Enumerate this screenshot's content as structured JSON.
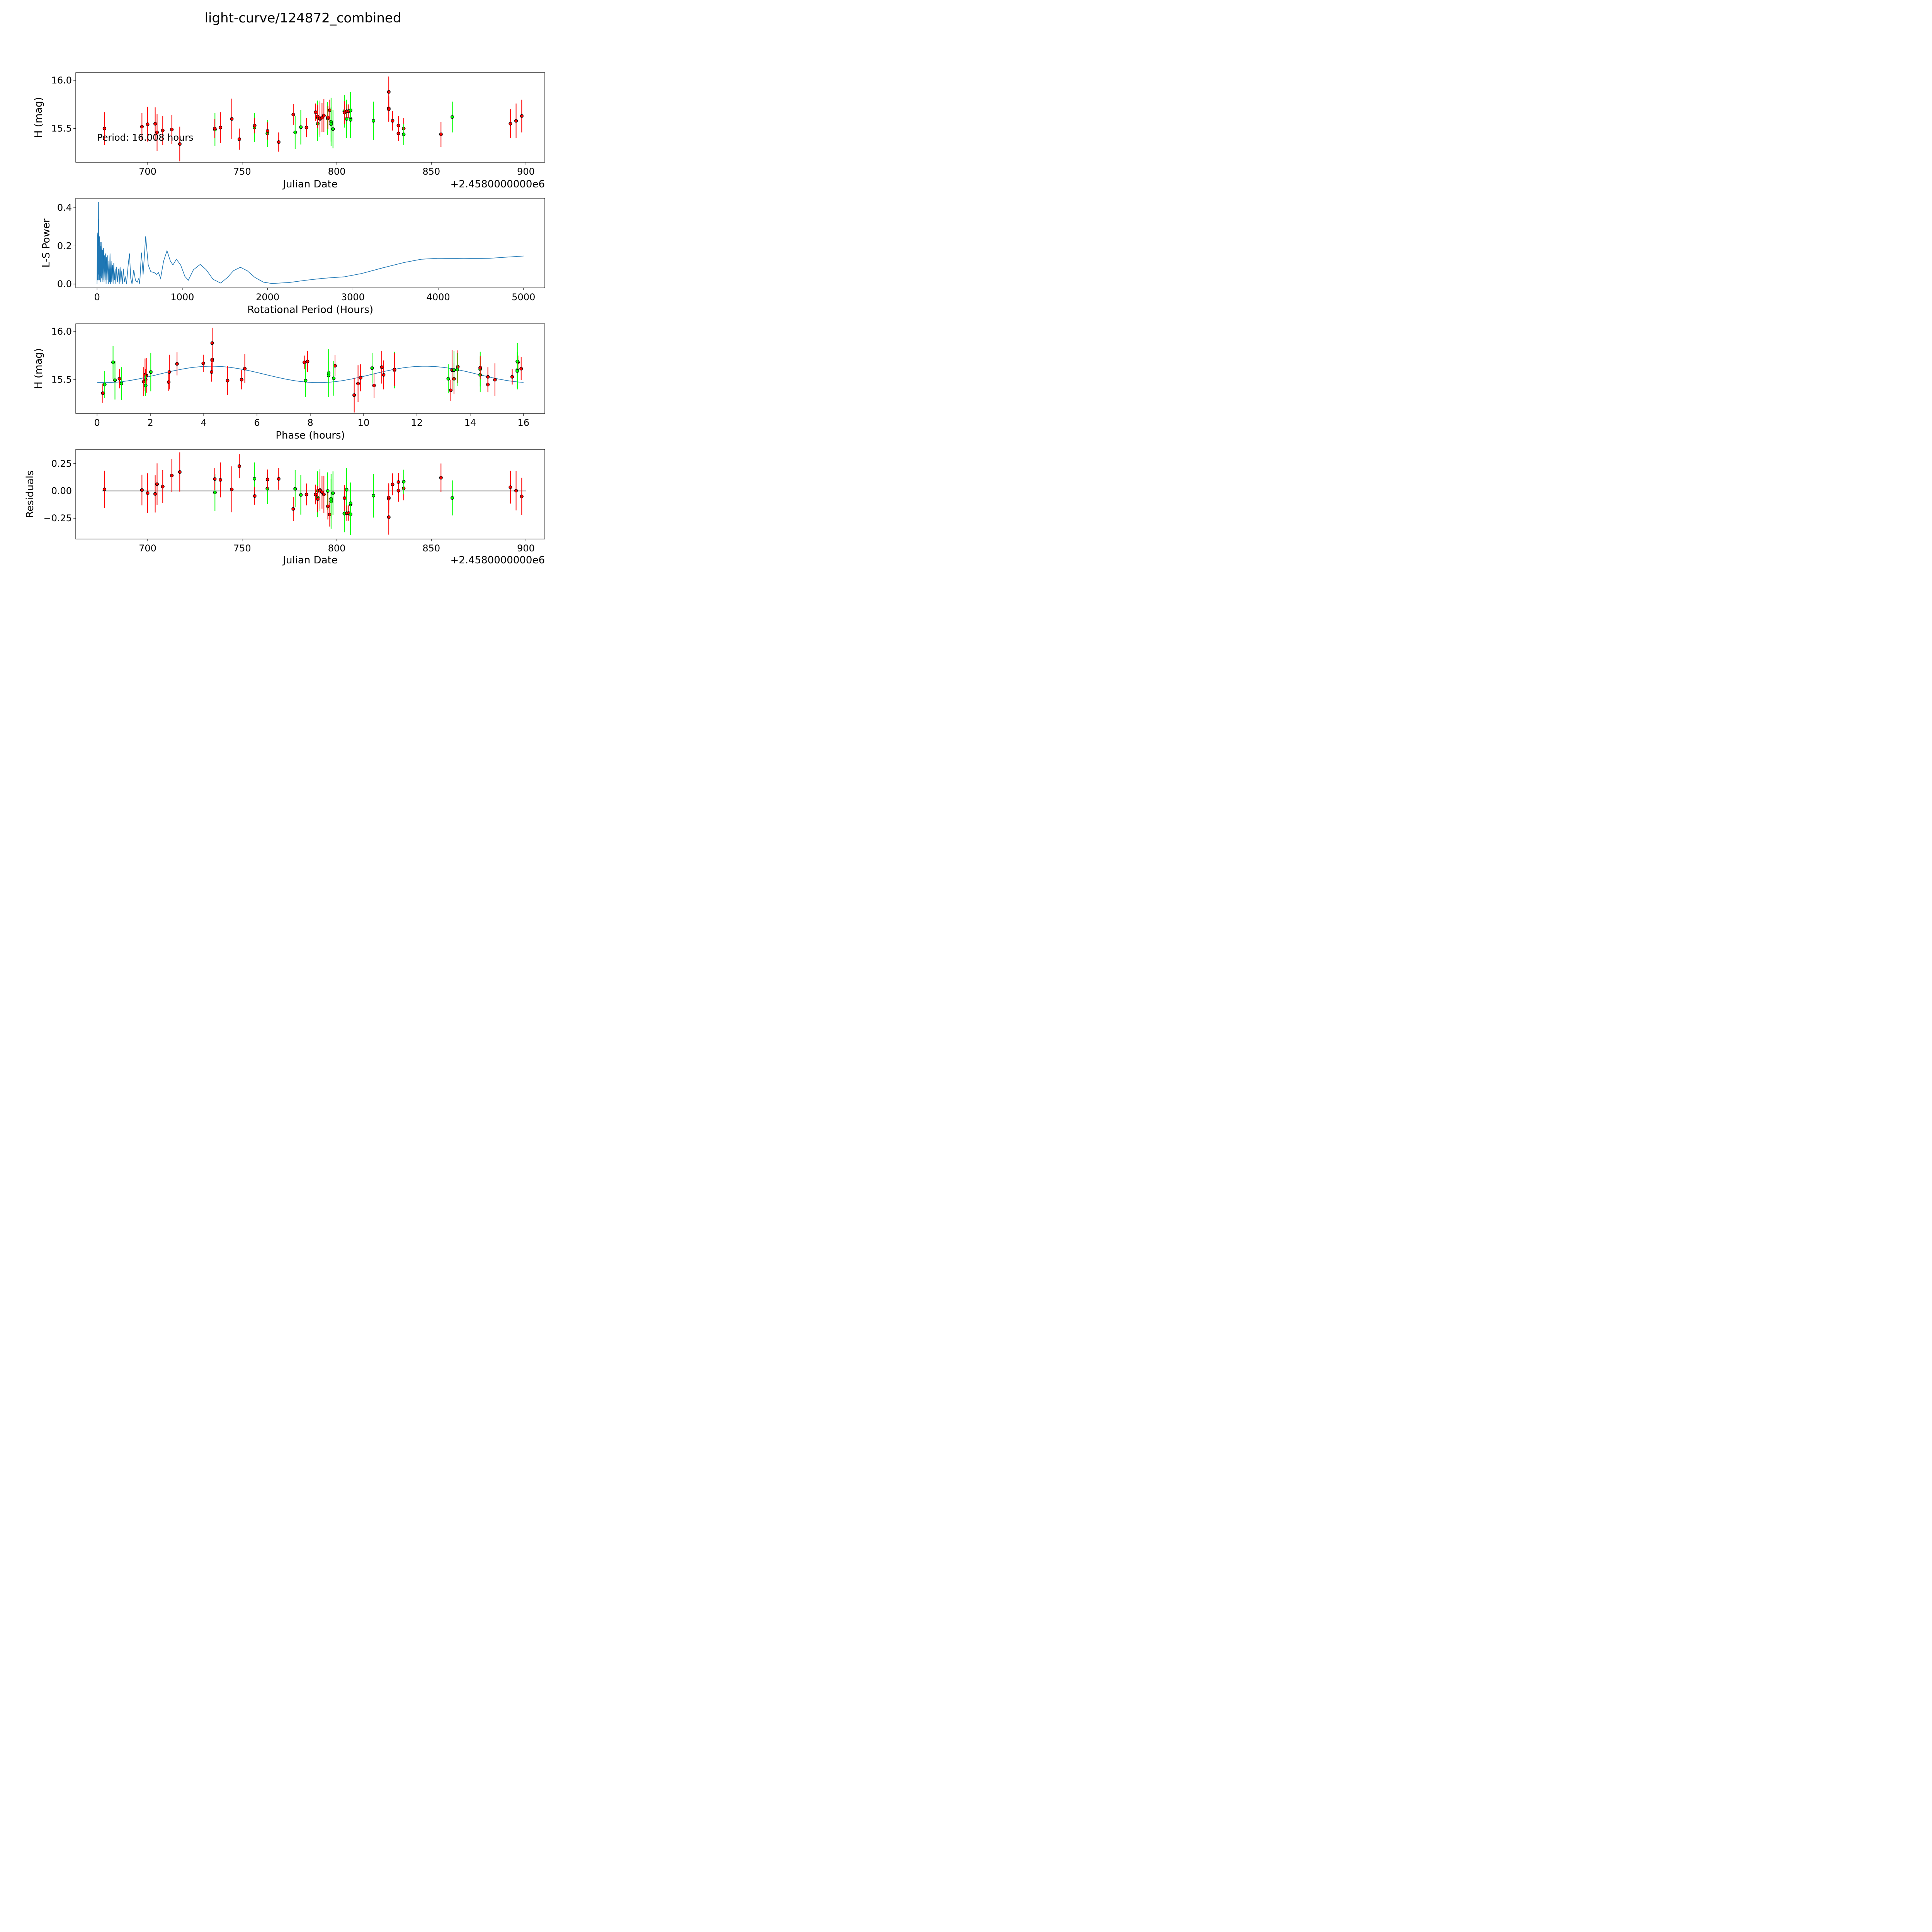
{
  "title": "light-curve/124872_combined",
  "colors": {
    "red": "#ff0000",
    "green": "#00ff00",
    "model": "#1f77b4",
    "marker_edge": "#000000"
  },
  "chart_data": [
    {
      "type": "scatter",
      "id": "lightcurve",
      "xlabel": "Julian Date",
      "ylabel": "H (mag)",
      "offset_label": "+2.4580000000e6",
      "annotation": "Period: 16.008 hours",
      "xlim": [
        662,
        910
      ],
      "ylim": [
        15.15,
        16.08
      ],
      "xticks": [
        700,
        750,
        800,
        850,
        900
      ],
      "yticks": [
        15.5,
        16.0
      ],
      "ytick_labels": [
        "15.5",
        "16.0"
      ],
      "xtick_labels": [
        "700",
        "750",
        "800",
        "850",
        "900"
      ]
    },
    {
      "type": "line",
      "id": "periodogram",
      "xlabel": "Rotational Period (Hours)",
      "ylabel": "L-S Power",
      "xlim": [
        -250,
        5250
      ],
      "ylim": [
        -0.02,
        0.45
      ],
      "xticks": [
        0,
        1000,
        2000,
        3000,
        4000,
        5000
      ],
      "xtick_labels": [
        "0",
        "1000",
        "2000",
        "3000",
        "4000",
        "5000"
      ],
      "yticks": [
        0.0,
        0.2,
        0.4
      ],
      "ytick_labels": [
        "0.0",
        "0.2",
        "0.4"
      ],
      "points": [
        [
          0,
          0
        ],
        [
          4,
          0.26
        ],
        [
          6,
          0.02
        ],
        [
          8,
          0.27
        ],
        [
          10,
          0.05
        ],
        [
          13,
          0.34
        ],
        [
          15,
          0.02
        ],
        [
          18,
          0.43
        ],
        [
          20,
          0.05
        ],
        [
          24,
          0.2
        ],
        [
          27,
          0.02
        ],
        [
          30,
          0.25
        ],
        [
          34,
          0.04
        ],
        [
          38,
          0.22
        ],
        [
          42,
          0.01
        ],
        [
          46,
          0.2
        ],
        [
          50,
          0.03
        ],
        [
          55,
          0.22
        ],
        [
          60,
          0.01
        ],
        [
          65,
          0.18
        ],
        [
          70,
          0.02
        ],
        [
          76,
          0.19
        ],
        [
          82,
          0.01
        ],
        [
          88,
          0.15
        ],
        [
          94,
          0.02
        ],
        [
          100,
          0.16
        ],
        [
          106,
          0.0
        ],
        [
          112,
          0.14
        ],
        [
          118,
          0.02
        ],
        [
          125,
          0.15
        ],
        [
          132,
          0.0
        ],
        [
          138,
          0.12
        ],
        [
          145,
          0.01
        ],
        [
          152,
          0.16
        ],
        [
          158,
          0.0
        ],
        [
          165,
          0.12
        ],
        [
          172,
          0.01
        ],
        [
          180,
          0.1
        ],
        [
          188,
          0.0
        ],
        [
          196,
          0.11
        ],
        [
          204,
          0.02
        ],
        [
          212,
          0.08
        ],
        [
          220,
          0.0
        ],
        [
          230,
          0.09
        ],
        [
          240,
          0.01
        ],
        [
          250,
          0.08
        ],
        [
          260,
          0.0
        ],
        [
          270,
          0.09
        ],
        [
          280,
          0.01
        ],
        [
          290,
          0.07
        ],
        [
          300,
          0.0
        ],
        [
          310,
          0.08
        ],
        [
          320,
          0.01
        ],
        [
          330,
          0.04
        ],
        [
          345,
          0.0
        ],
        [
          365,
          0.1
        ],
        [
          380,
          0.16
        ],
        [
          395,
          0.03
        ],
        [
          410,
          0.0
        ],
        [
          430,
          0.075
        ],
        [
          450,
          0.02
        ],
        [
          470,
          0.01
        ],
        [
          490,
          0.03
        ],
        [
          500,
          0.0
        ],
        [
          520,
          0.165
        ],
        [
          540,
          0.05
        ],
        [
          570,
          0.25
        ],
        [
          600,
          0.1
        ],
        [
          630,
          0.065
        ],
        [
          670,
          0.06
        ],
        [
          700,
          0.05
        ],
        [
          720,
          0.06
        ],
        [
          745,
          0.03
        ],
        [
          780,
          0.12
        ],
        [
          820,
          0.175
        ],
        [
          860,
          0.12
        ],
        [
          890,
          0.1
        ],
        [
          930,
          0.13
        ],
        [
          980,
          0.1
        ],
        [
          1030,
          0.04
        ],
        [
          1070,
          0.02
        ],
        [
          1130,
          0.075
        ],
        [
          1210,
          0.103
        ],
        [
          1280,
          0.075
        ],
        [
          1360,
          0.025
        ],
        [
          1450,
          0.005
        ],
        [
          1530,
          0.035
        ],
        [
          1600,
          0.07
        ],
        [
          1680,
          0.088
        ],
        [
          1760,
          0.07
        ],
        [
          1850,
          0.035
        ],
        [
          1950,
          0.01
        ],
        [
          2050,
          0.003
        ],
        [
          2250,
          0.008
        ],
        [
          2450,
          0.02
        ],
        [
          2650,
          0.03
        ],
        [
          2900,
          0.038
        ],
        [
          3100,
          0.055
        ],
        [
          3350,
          0.085
        ],
        [
          3600,
          0.113
        ],
        [
          3800,
          0.13
        ],
        [
          4000,
          0.135
        ],
        [
          4300,
          0.133
        ],
        [
          4600,
          0.135
        ],
        [
          5000,
          0.147
        ]
      ]
    },
    {
      "type": "scatter",
      "id": "phased",
      "xlabel": "Phase (hours)",
      "ylabel": "H (mag)",
      "xlim": [
        -0.8,
        16.8
      ],
      "ylim": [
        15.15,
        16.08
      ],
      "xticks": [
        0,
        2,
        4,
        6,
        8,
        10,
        12,
        14,
        16
      ],
      "xtick_labels": [
        "0",
        "2",
        "4",
        "6",
        "8",
        "10",
        "12",
        "14",
        "16"
      ],
      "yticks": [
        15.5,
        16.0
      ],
      "ytick_labels": [
        "15.5",
        "16.0"
      ],
      "period_hours": 16.008,
      "epoch_jd": 827.32,
      "model": {
        "mean": 15.555,
        "amplitude": 0.085,
        "harmonic_period_hours": 8.004,
        "peak_phase": 4.3
      }
    },
    {
      "type": "scatter",
      "id": "residuals",
      "xlabel": "Julian Date",
      "ylabel": "Residuals",
      "offset_label": "+2.4580000000e6",
      "xlim": [
        662,
        910
      ],
      "ylim": [
        -0.44,
        0.38
      ],
      "xticks": [
        700,
        750,
        800,
        850,
        900
      ],
      "xtick_labels": [
        "700",
        "750",
        "800",
        "850",
        "900"
      ],
      "yticks": [
        -0.25,
        0.0,
        0.25
      ],
      "ytick_labels": [
        "−0.25",
        "0.00",
        "0.25"
      ]
    }
  ],
  "observations": [
    {
      "jd": 677.2,
      "mag": 15.5,
      "err": 0.17,
      "f": "red"
    },
    {
      "jd": 697.0,
      "mag": 15.52,
      "err": 0.14,
      "f": "red"
    },
    {
      "jd": 700.0,
      "mag": 15.545,
      "err": 0.18,
      "f": "red"
    },
    {
      "jd": 704.0,
      "mag": 15.55,
      "err": 0.17,
      "f": "red"
    },
    {
      "jd": 705.0,
      "mag": 15.46,
      "err": 0.19,
      "f": "red"
    },
    {
      "jd": 708.0,
      "mag": 15.48,
      "err": 0.15,
      "f": "red"
    },
    {
      "jd": 712.8,
      "mag": 15.49,
      "err": 0.15,
      "f": "red"
    },
    {
      "jd": 717.0,
      "mag": 15.34,
      "err": 0.18,
      "f": "red"
    },
    {
      "jd": 735.6,
      "mag": 15.49,
      "err": 0.17,
      "f": "green"
    },
    {
      "jd": 735.5,
      "mag": 15.5,
      "err": 0.1,
      "f": "red"
    },
    {
      "jd": 738.5,
      "mag": 15.51,
      "err": 0.16,
      "f": "red"
    },
    {
      "jd": 744.5,
      "mag": 15.6,
      "err": 0.21,
      "f": "red"
    },
    {
      "jd": 748.5,
      "mag": 15.39,
      "err": 0.11,
      "f": "red"
    },
    {
      "jd": 756.5,
      "mag": 15.51,
      "err": 0.15,
      "f": "green"
    },
    {
      "jd": 756.6,
      "mag": 15.53,
      "err": 0.08,
      "f": "red"
    },
    {
      "jd": 763.3,
      "mag": 15.45,
      "err": 0.14,
      "f": "green"
    },
    {
      "jd": 763.4,
      "mag": 15.475,
      "err": 0.09,
      "f": "red"
    },
    {
      "jd": 769.3,
      "mag": 15.36,
      "err": 0.1,
      "f": "red"
    },
    {
      "jd": 777.0,
      "mag": 15.645,
      "err": 0.11,
      "f": "red"
    },
    {
      "jd": 778.0,
      "mag": 15.46,
      "err": 0.17,
      "f": "green"
    },
    {
      "jd": 781.0,
      "mag": 15.515,
      "err": 0.18,
      "f": "green"
    },
    {
      "jd": 784.0,
      "mag": 15.51,
      "err": 0.1,
      "f": "red"
    },
    {
      "jd": 788.8,
      "mag": 15.67,
      "err": 0.09,
      "f": "red"
    },
    {
      "jd": 789.9,
      "mag": 15.61,
      "err": 0.18,
      "f": "green"
    },
    {
      "jd": 789.9,
      "mag": 15.55,
      "err": 0.18,
      "f": "green"
    },
    {
      "jd": 789.9,
      "mag": 15.625,
      "err": 0.12,
      "f": "red"
    },
    {
      "jd": 791.1,
      "mag": 15.6,
      "err": 0.19,
      "f": "green"
    },
    {
      "jd": 791.1,
      "mag": 15.605,
      "err": 0.17,
      "f": "red"
    },
    {
      "jd": 792.2,
      "mag": 15.615,
      "err": 0.15,
      "f": "red"
    },
    {
      "jd": 793.2,
      "mag": 15.635,
      "err": 0.17,
      "f": "red"
    },
    {
      "jd": 795.2,
      "mag": 15.605,
      "err": 0.17,
      "f": "green"
    },
    {
      "jd": 795.3,
      "mag": 15.615,
      "err": 0.12,
      "f": "red"
    },
    {
      "jd": 796.3,
      "mag": 15.69,
      "err": 0.11,
      "f": "red"
    },
    {
      "jd": 797.0,
      "mag": 15.57,
      "err": 0.25,
      "f": "green"
    },
    {
      "jd": 797.0,
      "mag": 15.545,
      "err": 0.18,
      "f": "green"
    },
    {
      "jd": 798.0,
      "mag": 15.495,
      "err": 0.2,
      "f": "green"
    },
    {
      "jd": 804.0,
      "mag": 15.68,
      "err": 0.17,
      "f": "green"
    },
    {
      "jd": 804.1,
      "mag": 15.665,
      "err": 0.12,
      "f": "red"
    },
    {
      "jd": 805.2,
      "mag": 15.6,
      "err": 0.2,
      "f": "green"
    },
    {
      "jd": 805.3,
      "mag": 15.68,
      "err": 0.07,
      "f": "red"
    },
    {
      "jd": 806.3,
      "mag": 15.68,
      "err": 0.07,
      "f": "red"
    },
    {
      "jd": 807.3,
      "mag": 15.69,
      "err": 0.19,
      "f": "green"
    },
    {
      "jd": 807.3,
      "mag": 15.6,
      "err": 0.19,
      "f": "green"
    },
    {
      "jd": 807.3,
      "mag": 15.59,
      "err": 0.19,
      "f": "green"
    },
    {
      "jd": 819.4,
      "mag": 15.58,
      "err": 0.2,
      "f": "green"
    },
    {
      "jd": 827.5,
      "mag": 15.88,
      "err": 0.16,
      "f": "red"
    },
    {
      "jd": 827.5,
      "mag": 15.71,
      "err": 0.13,
      "f": "red"
    },
    {
      "jd": 827.5,
      "mag": 15.7,
      "err": 0.13,
      "f": "red"
    },
    {
      "jd": 829.5,
      "mag": 15.58,
      "err": 0.1,
      "f": "red"
    },
    {
      "jd": 832.6,
      "mag": 15.53,
      "err": 0.1,
      "f": "red"
    },
    {
      "jd": 832.6,
      "mag": 15.45,
      "err": 0.08,
      "f": "red"
    },
    {
      "jd": 835.4,
      "mag": 15.5,
      "err": 0.11,
      "f": "red"
    },
    {
      "jd": 835.4,
      "mag": 15.44,
      "err": 0.11,
      "f": "green"
    },
    {
      "jd": 855.1,
      "mag": 15.44,
      "err": 0.13,
      "f": "red"
    },
    {
      "jd": 861.1,
      "mag": 15.62,
      "err": 0.16,
      "f": "green"
    },
    {
      "jd": 891.8,
      "mag": 15.55,
      "err": 0.15,
      "f": "red"
    },
    {
      "jd": 894.8,
      "mag": 15.58,
      "err": 0.18,
      "f": "red"
    },
    {
      "jd": 897.8,
      "mag": 15.63,
      "err": 0.17,
      "f": "red"
    }
  ]
}
